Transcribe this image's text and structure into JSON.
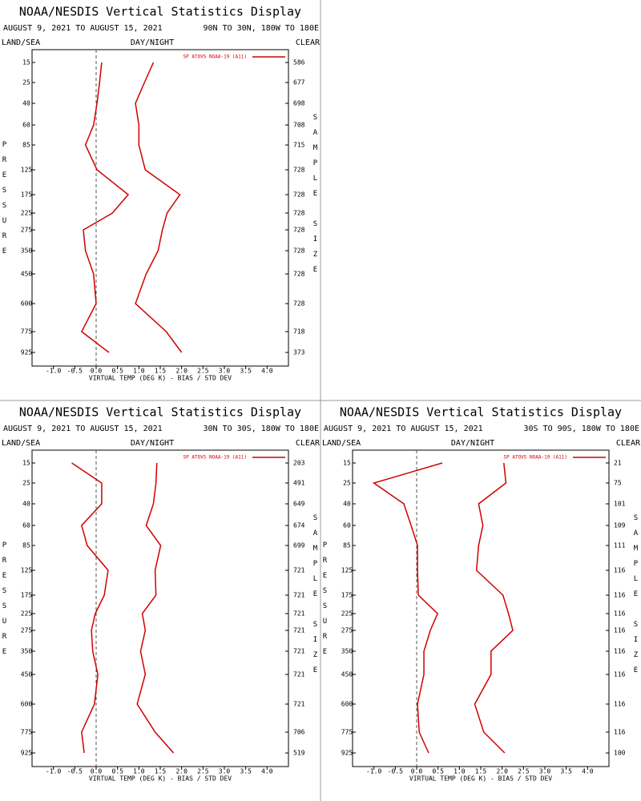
{
  "chart_data": [
    {
      "type": "profile",
      "title": "NOAA/NESDIS Vertical Statistics Display",
      "subtitle": "AUGUST 9, 2021 TO AUGUST 15, 2021",
      "region": "90N TO 30N, 180W TO 180E",
      "left_label": "LAND/SEA",
      "center_label": "DAY/NIGHT",
      "right_label": "CLEAR",
      "y_label": "PRESSURE",
      "y2_label": "SAMPLE SIZE",
      "x_label": "VIRTUAL TEMP (DEG K) - BIAS / STD DEV",
      "categories": [
        15,
        25,
        40,
        60,
        85,
        125,
        175,
        225,
        275,
        350,
        450,
        600,
        775,
        925
      ],
      "sample_size": [
        586,
        677,
        698,
        708,
        715,
        728,
        728,
        728,
        728,
        728,
        728,
        728,
        718,
        373
      ],
      "series": [
        {
          "name": "SP ATOVS NOAA-19 (A11)",
          "color": "#d00000",
          "bias": [
            0.13,
            0.08,
            0.02,
            -0.06,
            -0.25,
            0.02,
            0.75,
            0.38,
            -0.3,
            -0.25,
            -0.06,
            0.0,
            -0.34,
            0.3
          ],
          "std_dev": [
            1.34,
            1.13,
            0.92,
            1.0,
            1.0,
            1.15,
            1.96,
            1.66,
            1.55,
            1.45,
            1.17,
            0.92,
            1.64,
            2.0
          ]
        }
      ],
      "xlim": [
        -1.5,
        4.5
      ],
      "xticks": [
        {
          "value": -1,
          "label": "-1.0"
        },
        -0.5,
        {
          "value": 0,
          "label": "0.0"
        },
        0.5,
        {
          "value": 1,
          "label": "1.0"
        },
        1.5,
        {
          "value": 2,
          "label": "2.0"
        },
        2.5,
        {
          "value": 3,
          "label": "3.0"
        },
        3.5,
        {
          "value": 4,
          "label": "4.0"
        }
      ]
    },
    {
      "type": "profile",
      "title": "NOAA/NESDIS Vertical Statistics Display",
      "subtitle": "AUGUST 9, 2021 TO AUGUST 15, 2021",
      "region": "30N TO 30S, 180W TO 180E",
      "left_label": "LAND/SEA",
      "center_label": "DAY/NIGHT",
      "right_label": "CLEAR",
      "y_label": "PRESSURE",
      "y2_label": "SAMPLE SIZE",
      "x_label": "VIRTUAL TEMP (DEG K) - BIAS / STD DEV",
      "categories": [
        15,
        25,
        40,
        60,
        85,
        125,
        175,
        225,
        275,
        350,
        450,
        600,
        775,
        925
      ],
      "sample_size": [
        203,
        491,
        649,
        674,
        699,
        721,
        721,
        721,
        721,
        721,
        721,
        721,
        706,
        519
      ],
      "series": [
        {
          "name": "SP ATOVS NOAA-19 (A11)",
          "color": "#d00000",
          "bias": [
            -0.57,
            0.13,
            0.13,
            -0.34,
            -0.21,
            0.28,
            0.19,
            -0.02,
            -0.11,
            -0.08,
            0.04,
            -0.04,
            -0.34,
            -0.28
          ],
          "std_dev": [
            1.42,
            1.4,
            1.34,
            1.17,
            1.51,
            1.38,
            1.4,
            1.08,
            1.15,
            1.04,
            1.15,
            0.96,
            1.38,
            1.81
          ]
        }
      ],
      "xlim": [
        -1.5,
        4.5
      ],
      "xticks": [
        {
          "value": -1,
          "label": "-1.0"
        },
        -0.5,
        {
          "value": 0,
          "label": "0.0"
        },
        0.5,
        {
          "value": 1,
          "label": "1.0"
        },
        1.5,
        {
          "value": 2,
          "label": "2.0"
        },
        2.5,
        {
          "value": 3,
          "label": "3.0"
        },
        3.5,
        {
          "value": 4,
          "label": "4.0"
        }
      ]
    },
    {
      "type": "profile",
      "title": "NOAA/NESDIS Vertical Statistics Display",
      "subtitle": "AUGUST 9, 2021 TO AUGUST 15, 2021",
      "region": "30S TO 90S, 180W TO 180E",
      "left_label": "LAND/SEA",
      "center_label": "DAY/NIGHT",
      "right_label": "CLEAR",
      "y_label": "PRESSURE",
      "y2_label": "SAMPLE SIZE",
      "x_label": "VIRTUAL TEMP (DEG K) - BIAS / STD DEV",
      "categories": [
        15,
        25,
        40,
        60,
        85,
        125,
        175,
        225,
        275,
        350,
        450,
        600,
        775,
        925
      ],
      "sample_size": [
        21,
        75,
        101,
        109,
        111,
        116,
        116,
        116,
        116,
        116,
        116,
        116,
        116,
        100
      ],
      "series": [
        {
          "name": "SP ATOVS NOAA-19 (A11)",
          "color": "#d00000",
          "bias": [
            0.6,
            -1.0,
            -0.3,
            -0.13,
            0.02,
            0.02,
            0.04,
            0.49,
            0.32,
            0.17,
            0.17,
            0.02,
            0.06,
            0.28
          ],
          "std_dev": [
            2.04,
            2.09,
            1.45,
            1.55,
            1.45,
            1.4,
            2.02,
            2.15,
            2.25,
            1.74,
            1.74,
            1.36,
            1.57,
            2.06
          ]
        }
      ],
      "xlim": [
        -1.5,
        4.5
      ],
      "xticks": [
        {
          "value": -1,
          "label": "-1.0"
        },
        -0.5,
        {
          "value": 0,
          "label": "0.0"
        },
        0.5,
        {
          "value": 1,
          "label": "1.0"
        },
        1.5,
        {
          "value": 2,
          "label": "2.0"
        },
        2.5,
        {
          "value": 3,
          "label": "3.0"
        },
        3.5,
        {
          "value": 4,
          "label": "4.0"
        }
      ]
    }
  ]
}
